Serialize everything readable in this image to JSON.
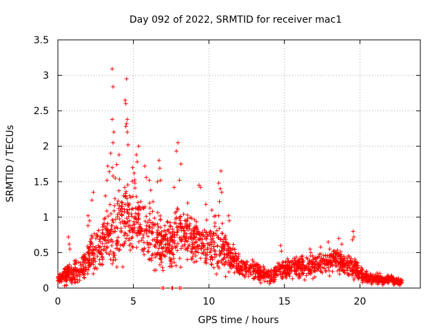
{
  "chart_data": {
    "type": "scatter",
    "title": "Day 092 of 2022, SRMTID for receiver mac1",
    "xlabel": "GPS time / hours",
    "ylabel": "SRMTID / TECUs",
    "xlim": [
      0,
      24
    ],
    "ylim": [
      0,
      3.5
    ],
    "grid": true,
    "x_ticks": [
      0,
      5,
      10,
      15,
      20
    ],
    "y_ticks": [
      0,
      0.5,
      1,
      1.5,
      2,
      2.5,
      3,
      3.5
    ],
    "x_tick_labels": [
      "0",
      "5",
      "10",
      "15",
      "20"
    ],
    "y_tick_labels": [
      "0",
      "0.5",
      "1",
      "1.5",
      "2",
      "2.5",
      "3",
      "3.5"
    ],
    "marker": "+",
    "marker_color": "#ff0000",
    "series": [
      {
        "name": "mac1",
        "envelope": {
          "hours": [
            0,
            0.5,
            1,
            1.5,
            2,
            2.5,
            3,
            3.5,
            4,
            4.5,
            5,
            5.5,
            6,
            6.5,
            7,
            7.5,
            8,
            8.5,
            9,
            9.5,
            10,
            10.5,
            11,
            11.5,
            12,
            12.5,
            13,
            13.5,
            14,
            14.5,
            15,
            15.5,
            16,
            16.5,
            17,
            17.5,
            18,
            18.5,
            19,
            19.5,
            20,
            20.5,
            21,
            21.5,
            22,
            22.5,
            22.8
          ],
          "median": [
            0.13,
            0.17,
            0.2,
            0.25,
            0.4,
            0.55,
            0.65,
            0.8,
            0.95,
            1.0,
            1.0,
            0.9,
            0.75,
            0.65,
            0.6,
            0.65,
            0.8,
            0.8,
            0.7,
            0.65,
            0.6,
            0.6,
            0.55,
            0.4,
            0.3,
            0.28,
            0.25,
            0.2,
            0.18,
            0.22,
            0.25,
            0.3,
            0.3,
            0.3,
            0.32,
            0.35,
            0.38,
            0.38,
            0.35,
            0.3,
            0.2,
            0.15,
            0.13,
            0.12,
            0.12,
            0.1,
            0.08
          ],
          "spread": [
            0.06,
            0.12,
            0.15,
            0.18,
            0.25,
            0.3,
            0.35,
            0.45,
            0.5,
            0.55,
            0.5,
            0.45,
            0.4,
            0.4,
            0.4,
            0.35,
            0.35,
            0.35,
            0.3,
            0.3,
            0.3,
            0.3,
            0.3,
            0.2,
            0.15,
            0.12,
            0.12,
            0.1,
            0.1,
            0.12,
            0.12,
            0.14,
            0.14,
            0.14,
            0.15,
            0.16,
            0.16,
            0.16,
            0.15,
            0.14,
            0.1,
            0.08,
            0.07,
            0.07,
            0.06,
            0.05,
            0.04
          ],
          "points_per_hour": 90
        },
        "peaks": [
          [
            3.6,
            3.09
          ],
          [
            3.65,
            2.84
          ],
          [
            4.55,
            2.95
          ],
          [
            4.45,
            2.65
          ],
          [
            4.5,
            2.6
          ],
          [
            4.6,
            2.38
          ],
          [
            4.55,
            2.32
          ],
          [
            3.6,
            2.38
          ],
          [
            3.7,
            2.2
          ],
          [
            3.65,
            2.05
          ],
          [
            4.5,
            2.28
          ],
          [
            4.6,
            2.2
          ],
          [
            4.65,
            2.02
          ],
          [
            5.35,
            2.0
          ],
          [
            5.2,
            1.88
          ],
          [
            5.25,
            1.78
          ],
          [
            3.5,
            1.9
          ],
          [
            4.05,
            1.88
          ],
          [
            3.9,
            1.74
          ],
          [
            3.3,
            1.72
          ],
          [
            3.4,
            1.64
          ],
          [
            3.6,
            1.7
          ],
          [
            3.65,
            1.58
          ],
          [
            3.8,
            1.55
          ],
          [
            3.25,
            1.52
          ],
          [
            5.75,
            1.72
          ],
          [
            5.85,
            1.56
          ],
          [
            6.05,
            1.52
          ],
          [
            6.7,
            1.8
          ],
          [
            6.75,
            1.69
          ],
          [
            6.6,
            1.5
          ],
          [
            6.8,
            1.52
          ],
          [
            7.95,
            2.05
          ],
          [
            7.85,
            1.93
          ],
          [
            8.15,
            1.75
          ],
          [
            8.05,
            1.52
          ],
          [
            9.35,
            1.45
          ],
          [
            9.45,
            1.42
          ],
          [
            10.8,
            1.65
          ],
          [
            10.65,
            1.48
          ],
          [
            10.75,
            1.4
          ],
          [
            10.85,
            1.35
          ],
          [
            10.7,
            1.22
          ],
          [
            10.65,
            1.02
          ],
          [
            11.3,
            1.02
          ],
          [
            11.35,
            0.95
          ],
          [
            2.35,
            1.35
          ],
          [
            2.25,
            1.24
          ],
          [
            3.15,
            1.3
          ],
          [
            2.0,
            1.02
          ],
          [
            2.1,
            0.95
          ],
          [
            2.0,
            0.88
          ],
          [
            0.7,
            0.72
          ],
          [
            0.75,
            0.62
          ],
          [
            0.8,
            0.55
          ],
          [
            14.75,
            0.6
          ],
          [
            14.8,
            0.52
          ],
          [
            16.7,
            0.55
          ],
          [
            16.75,
            0.5
          ],
          [
            17.4,
            0.58
          ],
          [
            17.9,
            0.65
          ],
          [
            18.0,
            0.55
          ],
          [
            19.55,
            0.8
          ],
          [
            19.6,
            0.72
          ],
          [
            19.5,
            0.68
          ],
          [
            18.6,
            0.7
          ],
          [
            18.8,
            0.62
          ],
          [
            5.1,
            1.48
          ],
          [
            4.95,
            1.7
          ],
          [
            5.05,
            1.62
          ],
          [
            4.25,
            1.15
          ],
          [
            4.35,
            1.3
          ],
          [
            7.7,
            1.42
          ],
          [
            8.6,
            1.2
          ],
          [
            9.8,
            1.18
          ],
          [
            10.2,
            1.1
          ],
          [
            10.45,
            1.02
          ],
          [
            6.3,
            1.22
          ],
          [
            6.15,
            1.38
          ]
        ],
        "zero_points": [
          [
            6.9,
            0.0
          ],
          [
            7.0,
            0.0
          ],
          [
            7.55,
            0.0
          ],
          [
            7.6,
            0.0
          ],
          [
            8.05,
            0.0
          ],
          [
            8.15,
            0.0
          ]
        ]
      }
    ]
  }
}
